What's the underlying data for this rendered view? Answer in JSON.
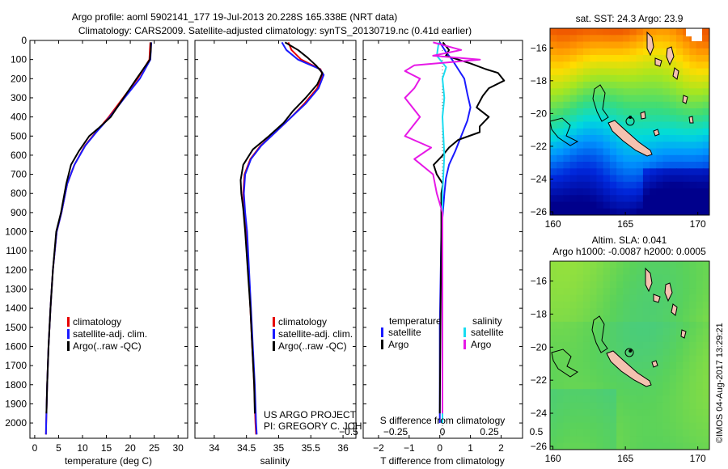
{
  "header": {
    "line1": "Argo profile: aoml 5902141_177 19-Jul-2013 20.228S 165.338E (NRT data)",
    "line2": "Climatology: CARS2009. Satellite-adjusted climatology: synTS_20130719.nc (0.41d earlier)"
  },
  "colors": {
    "climatology": "#e60000",
    "satellite": "#1a1aff",
    "argo": "#000000",
    "argo_salinity_diff": "#e619e6",
    "satellite_salinity_diff": "#19dcf0"
  },
  "credits": {
    "project": "US ARGO PROJECT",
    "pi": "PI: GREGORY C. JOHNSON",
    "imos": "©IMOS 04-Aug-2017 13:29:21"
  },
  "chart_data": [
    {
      "type": "line",
      "id": "temperature",
      "xlabel": "temperature (deg C)",
      "ylabel": "",
      "xlim": [
        -1,
        32
      ],
      "xticks": [
        0,
        5,
        10,
        15,
        20,
        25,
        30
      ],
      "ylim": [
        2080,
        0
      ],
      "yticks": [
        0,
        100,
        200,
        300,
        400,
        500,
        600,
        700,
        800,
        900,
        1000,
        1100,
        1200,
        1300,
        1400,
        1500,
        1600,
        1700,
        1800,
        1900,
        2000
      ],
      "legend": [
        "climatology",
        "satellite-adj. clim.",
        "Argo(..raw -QC)"
      ],
      "series": [
        {
          "name": "climatology",
          "color_key": "climatology",
          "points": [
            [
              24.2,
              10
            ],
            [
              24.1,
              50
            ],
            [
              24.0,
              100
            ],
            [
              21.5,
              200
            ],
            [
              18.5,
              300
            ],
            [
              15.5,
              400
            ],
            [
              12.8,
              480
            ],
            [
              10.5,
              550
            ],
            [
              8.3,
              650
            ],
            [
              6.8,
              750
            ],
            [
              5.6,
              900
            ],
            [
              4.6,
              1000
            ],
            [
              3.8,
              1200
            ],
            [
              3.3,
              1400
            ],
            [
              2.9,
              1600
            ],
            [
              2.6,
              1800
            ],
            [
              2.4,
              2000
            ],
            [
              2.35,
              2060
            ]
          ]
        },
        {
          "name": "satellite-adj. clim.",
          "color_key": "satellite",
          "points": [
            [
              24.4,
              10
            ],
            [
              24.3,
              50
            ],
            [
              24.2,
              100
            ],
            [
              22.0,
              200
            ],
            [
              18.8,
              300
            ],
            [
              15.7,
              400
            ],
            [
              12.9,
              480
            ],
            [
              10.6,
              550
            ],
            [
              8.3,
              650
            ],
            [
              6.8,
              750
            ],
            [
              5.6,
              900
            ],
            [
              4.6,
              1000
            ],
            [
              3.8,
              1200
            ],
            [
              3.3,
              1400
            ],
            [
              2.9,
              1600
            ],
            [
              2.6,
              1800
            ],
            [
              2.4,
              2000
            ],
            [
              2.35,
              2060
            ]
          ]
        },
        {
          "name": "Argo(..raw -QC)",
          "color_key": "argo",
          "points": [
            [
              24.3,
              10
            ],
            [
              24.3,
              50
            ],
            [
              24.1,
              100
            ],
            [
              21.3,
              200
            ],
            [
              18.6,
              300
            ],
            [
              15.9,
              400
            ],
            [
              13.3,
              460
            ],
            [
              11.4,
              500
            ],
            [
              9.2,
              580
            ],
            [
              7.6,
              650
            ],
            [
              6.6,
              750
            ],
            [
              5.5,
              900
            ],
            [
              4.5,
              1000
            ],
            [
              3.8,
              1200
            ],
            [
              3.3,
              1400
            ],
            [
              2.9,
              1600
            ],
            [
              2.6,
              1800
            ],
            [
              2.45,
              1950
            ]
          ]
        }
      ]
    },
    {
      "type": "line",
      "id": "salinity",
      "xlabel": "salinity",
      "ylabel": "",
      "xlim": [
        33.7,
        36.2
      ],
      "xticks": [
        34,
        34.5,
        35,
        35.5,
        36
      ],
      "ylim": [
        2080,
        0
      ],
      "legend": [
        "climatology",
        "satellite-adj. clim.",
        "Argo(..raw -QC)"
      ],
      "series": [
        {
          "name": "climatology",
          "color_key": "climatology",
          "points": [
            [
              35.15,
              10
            ],
            [
              35.2,
              50
            ],
            [
              35.35,
              100
            ],
            [
              35.65,
              150
            ],
            [
              35.68,
              180
            ],
            [
              35.6,
              250
            ],
            [
              35.4,
              330
            ],
            [
              35.2,
              400
            ],
            [
              34.95,
              480
            ],
            [
              34.72,
              550
            ],
            [
              34.56,
              620
            ],
            [
              34.47,
              700
            ],
            [
              34.45,
              800
            ],
            [
              34.47,
              900
            ],
            [
              34.5,
              1000
            ],
            [
              34.53,
              1200
            ],
            [
              34.56,
              1400
            ],
            [
              34.59,
              1600
            ],
            [
              34.62,
              1800
            ],
            [
              34.64,
              2000
            ],
            [
              34.65,
              2060
            ]
          ]
        },
        {
          "name": "satellite-adj. clim.",
          "color_key": "satellite",
          "points": [
            [
              35.05,
              10
            ],
            [
              35.12,
              50
            ],
            [
              35.3,
              100
            ],
            [
              35.64,
              150
            ],
            [
              35.7,
              180
            ],
            [
              35.62,
              250
            ],
            [
              35.42,
              330
            ],
            [
              35.2,
              400
            ],
            [
              34.95,
              480
            ],
            [
              34.73,
              550
            ],
            [
              34.57,
              620
            ],
            [
              34.48,
              700
            ],
            [
              34.46,
              800
            ],
            [
              34.48,
              900
            ],
            [
              34.51,
              1000
            ],
            [
              34.54,
              1200
            ],
            [
              34.57,
              1400
            ],
            [
              34.6,
              1600
            ],
            [
              34.63,
              1800
            ],
            [
              34.65,
              2000
            ],
            [
              34.66,
              2060
            ]
          ]
        },
        {
          "name": "Argo(..raw -QC)",
          "color_key": "argo",
          "points": [
            [
              35.1,
              10
            ],
            [
              35.3,
              50
            ],
            [
              35.45,
              90
            ],
            [
              35.58,
              130
            ],
            [
              35.68,
              170
            ],
            [
              35.6,
              230
            ],
            [
              35.42,
              300
            ],
            [
              35.22,
              370
            ],
            [
              35.08,
              430
            ],
            [
              34.85,
              500
            ],
            [
              34.6,
              570
            ],
            [
              34.45,
              650
            ],
            [
              34.41,
              730
            ],
            [
              34.42,
              800
            ],
            [
              34.45,
              880
            ],
            [
              34.48,
              1000
            ],
            [
              34.52,
              1200
            ],
            [
              34.56,
              1400
            ],
            [
              34.59,
              1600
            ],
            [
              34.62,
              1800
            ],
            [
              34.63,
              1950
            ]
          ]
        }
      ]
    },
    {
      "type": "line",
      "id": "difference",
      "xlabel": "T difference from climatology",
      "xlabel_top": "S difference from climatology",
      "xlim": [
        -2.5,
        2.7
      ],
      "xticks": [
        -2,
        -1,
        0,
        1,
        2
      ],
      "xticks_top": [
        -0.5,
        -0.25,
        0,
        0.25,
        0.5
      ],
      "ylim": [
        2080,
        0
      ],
      "legend_titles": [
        "temperature",
        "salinity"
      ],
      "legend": [
        "satellite",
        "Argo",
        "satellite",
        "Argo"
      ],
      "series": [
        {
          "name": "temperature satellite",
          "color_key": "satellite",
          "points": [
            [
              0.0,
              10
            ],
            [
              0.2,
              60
            ],
            [
              0.4,
              100
            ],
            [
              0.6,
              150
            ],
            [
              0.8,
              200
            ],
            [
              0.9,
              280
            ],
            [
              1.0,
              350
            ],
            [
              0.9,
              420
            ],
            [
              0.7,
              500
            ],
            [
              0.5,
              580
            ],
            [
              0.3,
              650
            ],
            [
              0.2,
              720
            ],
            [
              0.15,
              800
            ],
            [
              0.05,
              1000
            ],
            [
              0.0,
              1500
            ],
            [
              0.0,
              2000
            ]
          ]
        },
        {
          "name": "temperature Argo",
          "color_key": "argo",
          "points": [
            [
              0.1,
              10
            ],
            [
              0.3,
              50
            ],
            [
              0.2,
              80
            ],
            [
              1.0,
              120
            ],
            [
              1.5,
              150
            ],
            [
              1.9,
              170
            ],
            [
              2.1,
              210
            ],
            [
              1.6,
              250
            ],
            [
              1.4,
              290
            ],
            [
              1.2,
              350
            ],
            [
              1.6,
              400
            ],
            [
              1.3,
              450
            ],
            [
              1.3,
              480
            ],
            [
              0.6,
              520
            ],
            [
              0.3,
              560
            ],
            [
              0.1,
              600
            ],
            [
              -0.2,
              650
            ],
            [
              -0.1,
              700
            ],
            [
              0.1,
              750
            ],
            [
              0.05,
              800
            ],
            [
              0.05,
              1000
            ],
            [
              0.02,
              1500
            ],
            [
              0.0,
              1950
            ]
          ]
        },
        {
          "name": "salinity satellite",
          "color_key": "satellite_salinity_diff",
          "points": [
            [
              -0.02,
              10
            ],
            [
              -0.03,
              80
            ],
            [
              0.02,
              140
            ],
            [
              0.0,
              200
            ],
            [
              0.01,
              300
            ],
            [
              0.0,
              400
            ],
            [
              0.01,
              600
            ],
            [
              0.0,
              800
            ],
            [
              0.0,
              1000
            ],
            [
              0.0,
              1500
            ],
            [
              0.0,
              2000
            ]
          ]
        },
        {
          "name": "salinity Argo",
          "color_key": "argo_salinity_diff",
          "points": [
            [
              -0.05,
              10
            ],
            [
              0.1,
              50
            ],
            [
              -0.05,
              80
            ],
            [
              0.2,
              100
            ],
            [
              -0.15,
              130
            ],
            [
              -0.2,
              160
            ],
            [
              -0.12,
              200
            ],
            [
              -0.15,
              250
            ],
            [
              -0.2,
              300
            ],
            [
              -0.12,
              400
            ],
            [
              -0.2,
              500
            ],
            [
              -0.06,
              560
            ],
            [
              -0.15,
              620
            ],
            [
              -0.05,
              700
            ],
            [
              -0.03,
              800
            ],
            [
              0.0,
              900
            ],
            [
              0.0,
              1200
            ],
            [
              0.0,
              1950
            ]
          ]
        }
      ]
    },
    {
      "type": "heatmap",
      "id": "sst_map",
      "title": "sat. SST: 24.3 Argo: 23.9",
      "xticks": [
        160,
        165,
        170
      ],
      "yticks": [
        -16,
        -18,
        -20,
        -22,
        -24,
        -26
      ],
      "xlim": [
        159.8,
        170.8
      ],
      "ylim": [
        -26.2,
        -14.8
      ],
      "argo_position": [
        165.338,
        -20.228
      ]
    },
    {
      "type": "heatmap",
      "id": "sla_map",
      "title_line1": "Altim. SLA: 0.041",
      "title_line2": "Argo h1000: -0.0087 h2000: 0.0005",
      "xticks": [
        160,
        165,
        170
      ],
      "yticks": [
        -16,
        -18,
        -20,
        -22,
        -24,
        -26
      ],
      "xlim": [
        159.8,
        170.8
      ],
      "ylim": [
        -26.2,
        -14.8
      ],
      "argo_position": [
        165.338,
        -20.228
      ]
    }
  ]
}
